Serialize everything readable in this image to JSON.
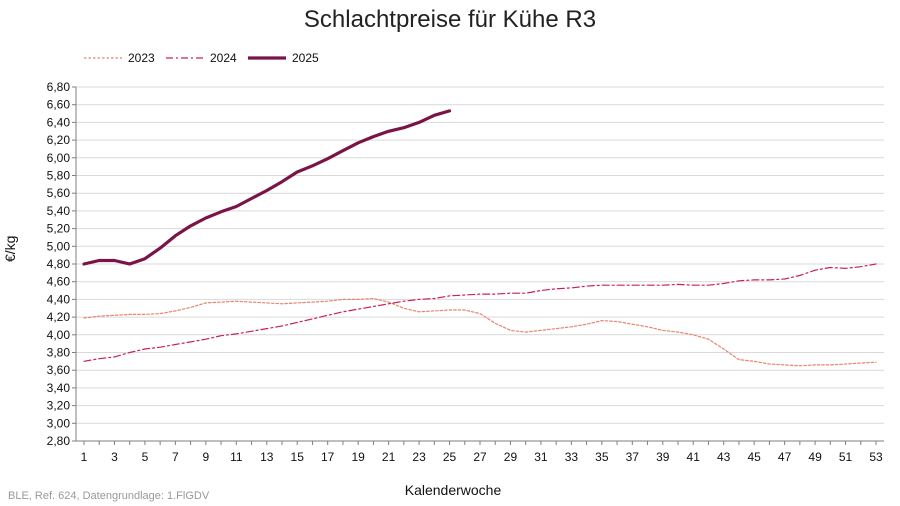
{
  "chart_data": {
    "type": "line",
    "title": "Schlachtpreise für Kühe R3",
    "xlabel": "Kalenderwoche",
    "ylabel": "€/kg",
    "xlim": [
      1,
      53
    ],
    "ylim": [
      2.8,
      6.8
    ],
    "ytick_step": 0.2,
    "xtick_step": 2,
    "grid": "horizontal",
    "legend_position": "top-left",
    "series": [
      {
        "name": "2023",
        "color": "#e8836f",
        "style": "dotted",
        "x": [
          1,
          2,
          3,
          4,
          5,
          6,
          7,
          8,
          9,
          10,
          11,
          12,
          13,
          14,
          15,
          16,
          17,
          18,
          19,
          20,
          21,
          22,
          23,
          24,
          25,
          26,
          27,
          28,
          29,
          30,
          31,
          32,
          33,
          34,
          35,
          36,
          37,
          38,
          39,
          40,
          41,
          42,
          43,
          44,
          45,
          46,
          47,
          48,
          49,
          50,
          51,
          52,
          53
        ],
        "values": [
          4.19,
          4.21,
          4.22,
          4.23,
          4.23,
          4.24,
          4.27,
          4.31,
          4.36,
          4.37,
          4.38,
          4.37,
          4.36,
          4.35,
          4.36,
          4.37,
          4.38,
          4.4,
          4.4,
          4.41,
          4.37,
          4.3,
          4.26,
          4.27,
          4.28,
          4.28,
          4.24,
          4.13,
          4.05,
          4.03,
          4.05,
          4.07,
          4.09,
          4.12,
          4.16,
          4.15,
          4.12,
          4.09,
          4.05,
          4.03,
          4.0,
          3.95,
          3.84,
          3.72,
          3.7,
          3.67,
          3.66,
          3.65,
          3.66,
          3.66,
          3.67,
          3.68,
          3.69
        ]
      },
      {
        "name": "2024",
        "color": "#c8205f",
        "style": "dashdot",
        "x": [
          1,
          2,
          3,
          4,
          5,
          6,
          7,
          8,
          9,
          10,
          11,
          12,
          13,
          14,
          15,
          16,
          17,
          18,
          19,
          20,
          21,
          22,
          23,
          24,
          25,
          26,
          27,
          28,
          29,
          30,
          31,
          32,
          33,
          34,
          35,
          36,
          37,
          38,
          39,
          40,
          41,
          42,
          43,
          44,
          45,
          46,
          47,
          48,
          49,
          50,
          51,
          52,
          53
        ],
        "values": [
          3.7,
          3.73,
          3.75,
          3.8,
          3.84,
          3.86,
          3.89,
          3.92,
          3.95,
          3.99,
          4.01,
          4.04,
          4.07,
          4.1,
          4.14,
          4.18,
          4.22,
          4.26,
          4.29,
          4.32,
          4.35,
          4.38,
          4.4,
          4.41,
          4.44,
          4.45,
          4.46,
          4.46,
          4.47,
          4.47,
          4.5,
          4.52,
          4.53,
          4.55,
          4.56,
          4.56,
          4.56,
          4.56,
          4.56,
          4.57,
          4.56,
          4.56,
          4.58,
          4.61,
          4.62,
          4.62,
          4.63,
          4.67,
          4.73,
          4.76,
          4.75,
          4.77,
          4.8
        ]
      },
      {
        "name": "2025",
        "color": "#7b1446",
        "style": "solid",
        "x": [
          1,
          2,
          3,
          4,
          5,
          6,
          7,
          8,
          9,
          10,
          11,
          12,
          13,
          14,
          15,
          16,
          17,
          18,
          19,
          20,
          21,
          22,
          23,
          24,
          25
        ],
        "values": [
          4.8,
          4.84,
          4.84,
          4.8,
          4.86,
          4.98,
          5.12,
          5.23,
          5.32,
          5.39,
          5.45,
          5.54,
          5.63,
          5.73,
          5.84,
          5.91,
          5.99,
          6.08,
          6.17,
          6.24,
          6.3,
          6.34,
          6.4,
          6.48,
          6.53
        ]
      }
    ]
  },
  "source_note": "BLE, Ref. 624, Datengrundlage: 1.FlGDV"
}
